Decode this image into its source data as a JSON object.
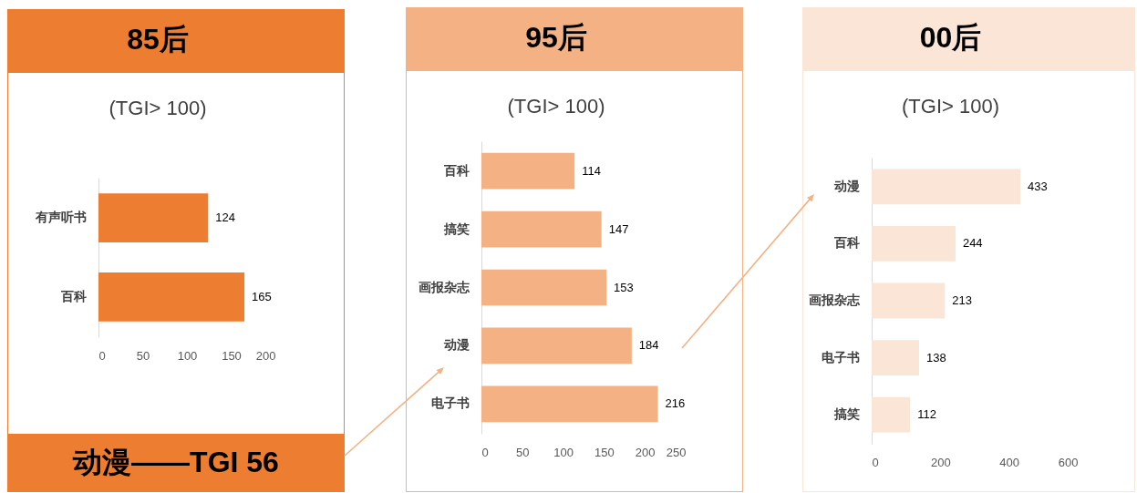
{
  "chart_data": [
    {
      "type": "bar",
      "orientation": "horizontal",
      "title": "85后",
      "subtitle": "(TGI> 100)",
      "categories": [
        "有声听书",
        "百科"
      ],
      "values": [
        124,
        165
      ],
      "color": "#ed7d31",
      "xlim": [
        0,
        200
      ],
      "xticks": [
        0,
        50,
        100,
        150,
        200
      ],
      "grid": false,
      "data_labels": true,
      "annotations": [
        "动漫——TGI 56"
      ]
    },
    {
      "type": "bar",
      "orientation": "horizontal",
      "title": "95后",
      "subtitle": "(TGI> 100)",
      "categories": [
        "百科",
        "搞笑",
        "画报杂志",
        "动漫",
        "电子书"
      ],
      "values": [
        114,
        147,
        153,
        184,
        216
      ],
      "color": "#f4b183",
      "xlim": [
        0,
        250
      ],
      "xticks": [
        0,
        50,
        100,
        150,
        200,
        250
      ],
      "grid": false,
      "data_labels": true
    },
    {
      "type": "bar",
      "orientation": "horizontal",
      "title": "00后",
      "subtitle": "(TGI> 100)",
      "categories": [
        "动漫",
        "百科",
        "画报杂志",
        "电子书",
        "搞笑"
      ],
      "values": [
        433,
        244,
        213,
        138,
        112
      ],
      "color": "#fbe5d6",
      "xlim": [
        0,
        600
      ],
      "xticks": [
        0,
        200,
        400,
        600
      ],
      "grid": false,
      "data_labels": true
    }
  ]
}
